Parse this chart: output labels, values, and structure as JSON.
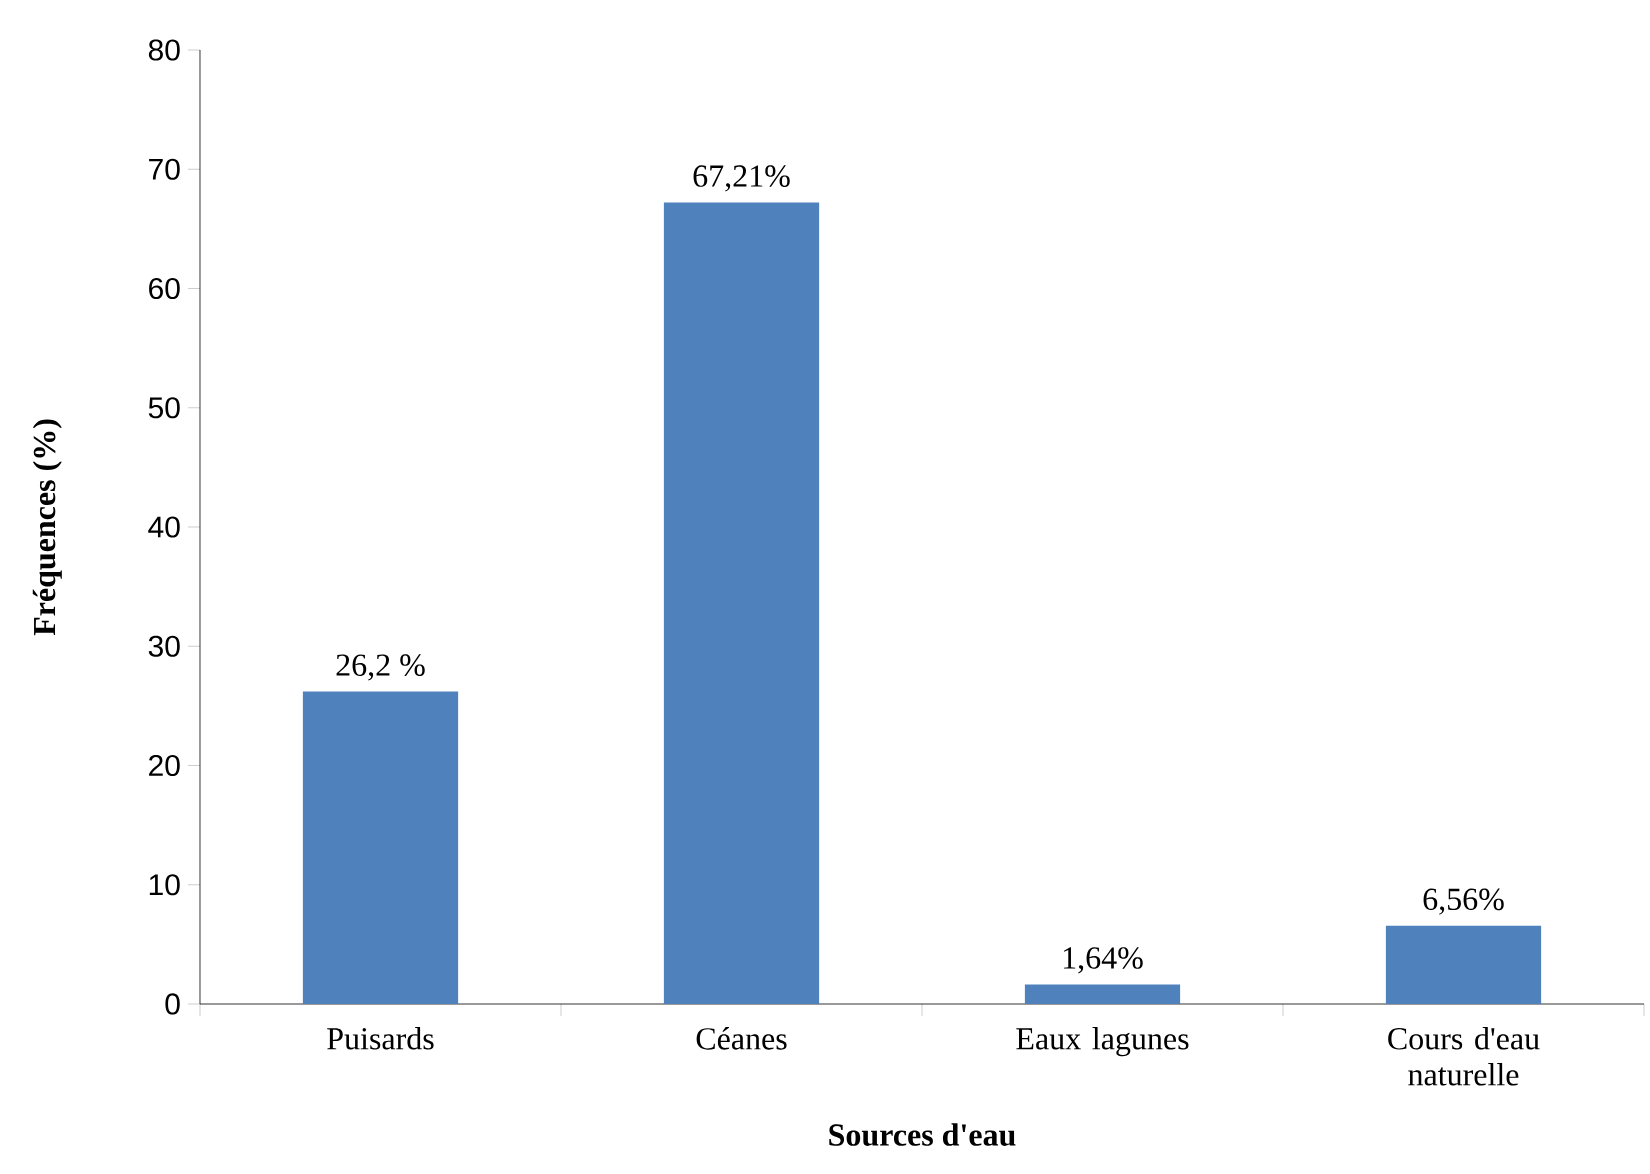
{
  "chart_data": {
    "type": "bar",
    "xlabel": "Sources d'eau",
    "ylabel": "Fréquences (%)",
    "categories": [
      "Puisards",
      "Céanes",
      "Eaux lagunes",
      "Cours d'eau naturelle"
    ],
    "values": [
      26.2,
      67.21,
      1.64,
      6.56
    ],
    "value_labels": [
      "26,2 %",
      "67,21%",
      "1,64%",
      "6,56%"
    ],
    "color": "#4f81bd",
    "ylim": [
      0,
      80
    ],
    "yticks": [
      0,
      10,
      20,
      30,
      40,
      50,
      60,
      70,
      80
    ],
    "grid": false
  }
}
